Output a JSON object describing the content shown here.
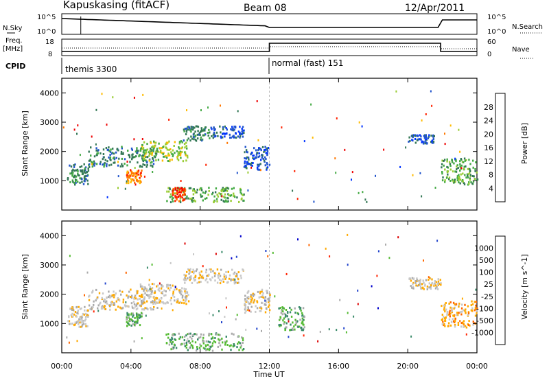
{
  "header": {
    "title": "Kapuskasing (fitACF)",
    "beam": "Beam 08",
    "date": "12/Apr/2011"
  },
  "top_panels": {
    "left_labels": {
      "nsky": "N.Sky",
      "freq": "Freq.",
      "freq_unit": "[MHz]",
      "cpid": "CPID"
    },
    "right_labels": {
      "nsearch": "N.Search",
      "nave": "Nave"
    },
    "nsky_ticks": [
      "10^5",
      "10^0"
    ],
    "nsearch_ticks": [
      "10^5",
      "10^0"
    ],
    "freq_ticks": [
      "18",
      "8"
    ],
    "nave_ticks": [
      "60",
      "0"
    ],
    "cpid_modes": [
      {
        "label": "themis 3300",
        "start_hour": 0,
        "end_hour": 12
      },
      {
        "label": "normal (fast) 151",
        "start_hour": 12,
        "end_hour": 24
      }
    ]
  },
  "time_axis": {
    "label": "Time UT",
    "ticks": [
      "00:00",
      "04:00",
      "08:00",
      "12:00",
      "16:00",
      "20:00",
      "00:00"
    ]
  },
  "colors": {
    "power_scale": [
      "#0033ff",
      "#2255cc",
      "#337755",
      "#44aa44",
      "#99cc33",
      "#ffbb00",
      "#ff7700",
      "#ff2200",
      "#ee0000"
    ],
    "velocity_scale": [
      "#0000cc",
      "#2244cc",
      "#3a8a6a",
      "#55bb33",
      "#aaaaaa",
      "#c8c8c8",
      "#ffaa00",
      "#ff6600",
      "#ff2200",
      "#dd0000"
    ]
  },
  "chart_data": [
    {
      "type": "heatmap",
      "title": "Power",
      "ylabel": "Slant Range [km]",
      "xlabel": "",
      "xlim": [
        0,
        24
      ],
      "ylim": [
        0,
        4500
      ],
      "y_ticks": [
        "1000",
        "2000",
        "3000",
        "4000"
      ],
      "colorbar_label": "Power [dB]",
      "colorbar_ticks": [
        "28",
        "24",
        "20",
        "16",
        "12",
        "8",
        "4"
      ],
      "bands": [
        {
          "t0": 0.3,
          "t1": 1.5,
          "r0": 900,
          "r1": 1600,
          "level": 2
        },
        {
          "t0": 1.5,
          "t1": 5.5,
          "r0": 1500,
          "r1": 2200,
          "level": 2
        },
        {
          "t0": 3.7,
          "t1": 4.6,
          "r0": 950,
          "r1": 1400,
          "level": 6
        },
        {
          "t0": 4.5,
          "t1": 7.3,
          "r0": 1700,
          "r1": 2400,
          "level": 4
        },
        {
          "t0": 7.0,
          "t1": 8.5,
          "r0": 2400,
          "r1": 2900,
          "level": 2
        },
        {
          "t0": 8.5,
          "t1": 10.5,
          "r0": 2500,
          "r1": 2900,
          "level": 1
        },
        {
          "t0": 10.5,
          "t1": 12.0,
          "r0": 1400,
          "r1": 2200,
          "level": 1
        },
        {
          "t0": 6.0,
          "t1": 10.5,
          "r0": 300,
          "r1": 800,
          "level": 3
        },
        {
          "t0": 6.3,
          "t1": 7.1,
          "r0": 300,
          "r1": 800,
          "level": 7
        },
        {
          "t0": 20.0,
          "t1": 21.5,
          "r0": 2300,
          "r1": 2600,
          "level": 1
        },
        {
          "t0": 21.9,
          "t1": 24.0,
          "r0": 900,
          "r1": 1800,
          "level": 3
        }
      ]
    },
    {
      "type": "heatmap",
      "title": "Velocity",
      "ylabel": "Slant Range [km]",
      "xlabel": "Time UT",
      "xlim": [
        0,
        24
      ],
      "ylim": [
        0,
        4500
      ],
      "y_ticks": [
        "1000",
        "2000",
        "3000",
        "4000"
      ],
      "colorbar_label": "Velocity [m s^-1]",
      "colorbar_ticks": [
        "1000",
        "500",
        "100",
        "25",
        "-25",
        "-100",
        "-500",
        "-1000"
      ],
      "bands": [
        {
          "t0": 0.3,
          "t1": 1.5,
          "r0": 900,
          "r1": 1600,
          "level": 5
        },
        {
          "t0": 1.5,
          "t1": 5.5,
          "r0": 1500,
          "r1": 2200,
          "level": 5
        },
        {
          "t0": 3.7,
          "t1": 4.6,
          "r0": 950,
          "r1": 1400,
          "level": 3
        },
        {
          "t0": 4.5,
          "t1": 7.3,
          "r0": 1700,
          "r1": 2400,
          "level": 5
        },
        {
          "t0": 7.0,
          "t1": 10.5,
          "r0": 2400,
          "r1": 2900,
          "level": 5
        },
        {
          "t0": 10.5,
          "t1": 12.0,
          "r0": 1400,
          "r1": 2200,
          "level": 5
        },
        {
          "t0": 6.0,
          "t1": 10.5,
          "r0": 100,
          "r1": 700,
          "level": 3
        },
        {
          "t0": 12.5,
          "t1": 14.0,
          "r0": 800,
          "r1": 1600,
          "level": 3
        },
        {
          "t0": 20.0,
          "t1": 21.9,
          "r0": 2200,
          "r1": 2600,
          "level": 5
        },
        {
          "t0": 21.9,
          "t1": 24.0,
          "r0": 900,
          "r1": 1800,
          "level": 6
        }
      ]
    }
  ]
}
